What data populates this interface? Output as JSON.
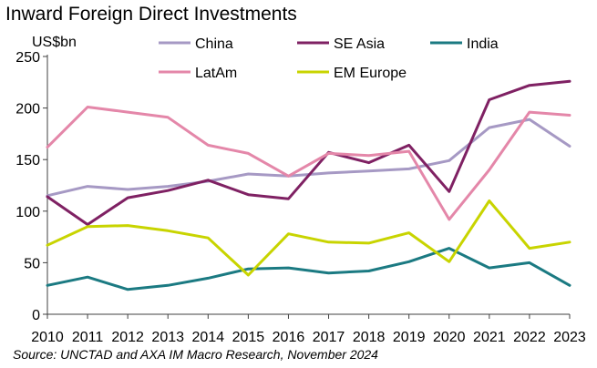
{
  "title": "Inward Foreign Direct Investments",
  "unit_label": "US$bn",
  "source": "Source: UNCTAD and AXA IM Macro Research, November 2024",
  "chart_data": {
    "type": "line",
    "title": "Inward Foreign Direct Investments",
    "xlabel": "",
    "ylabel": "US$bn",
    "x": [
      2010,
      2011,
      2012,
      2013,
      2014,
      2015,
      2016,
      2017,
      2018,
      2019,
      2020,
      2021,
      2022,
      2023
    ],
    "ylim": [
      0,
      250
    ],
    "yticks": [
      0,
      50,
      100,
      150,
      200,
      250
    ],
    "grid": false,
    "legend": "top",
    "series": [
      {
        "name": "China",
        "color": "#a699c4",
        "values": [
          115,
          124,
          121,
          124,
          129,
          136,
          134,
          137,
          139,
          141,
          149,
          181,
          189,
          163
        ]
      },
      {
        "name": "SE Asia",
        "color": "#7f2163",
        "values": [
          114,
          87,
          113,
          120,
          130,
          116,
          112,
          157,
          147,
          164,
          119,
          208,
          222,
          226
        ]
      },
      {
        "name": "India",
        "color": "#1b7a82",
        "values": [
          28,
          36,
          24,
          28,
          35,
          44,
          45,
          40,
          42,
          51,
          64,
          45,
          50,
          28
        ]
      },
      {
        "name": "LatAm",
        "color": "#e487a9",
        "values": [
          162,
          201,
          196,
          191,
          164,
          156,
          134,
          156,
          154,
          158,
          92,
          140,
          196,
          193
        ]
      },
      {
        "name": "EM Europe",
        "color": "#c8d400",
        "values": [
          67,
          85,
          86,
          81,
          74,
          38,
          78,
          70,
          69,
          79,
          51,
          110,
          64,
          70
        ]
      }
    ]
  }
}
